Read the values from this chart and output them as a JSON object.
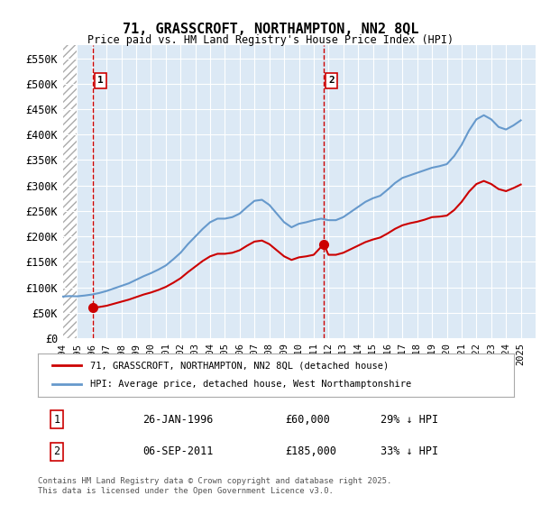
{
  "title": "71, GRASSCROFT, NORTHAMPTON, NN2 8QL",
  "subtitle": "Price paid vs. HM Land Registry's House Price Index (HPI)",
  "bg_color": "#dce9f5",
  "plot_bg_color": "#dce9f5",
  "hatch_color": "#c0c0c0",
  "grid_color": "#ffffff",
  "ylim": [
    0,
    575000
  ],
  "yticks": [
    0,
    50000,
    100000,
    150000,
    200000,
    250000,
    300000,
    350000,
    400000,
    450000,
    500000,
    550000
  ],
  "ytick_labels": [
    "£0",
    "£50K",
    "£100K",
    "£150K",
    "£200K",
    "£250K",
    "£300K",
    "£350K",
    "£400K",
    "£450K",
    "£500K",
    "£550K"
  ],
  "xlim_start": 1994.0,
  "xlim_end": 2026.0,
  "xticks": [
    1994,
    1995,
    1996,
    1997,
    1998,
    1999,
    2000,
    2001,
    2002,
    2003,
    2004,
    2005,
    2006,
    2007,
    2008,
    2009,
    2010,
    2011,
    2012,
    2013,
    2014,
    2015,
    2016,
    2017,
    2018,
    2019,
    2020,
    2021,
    2022,
    2023,
    2024,
    2025
  ],
  "sale1_x": 1996.07,
  "sale1_y": 60000,
  "sale2_x": 2011.68,
  "sale2_y": 185000,
  "legend_line1": "71, GRASSCROFT, NORTHAMPTON, NN2 8QL (detached house)",
  "legend_line2": "HPI: Average price, detached house, West Northamptonshire",
  "table_row1": [
    "1",
    "26-JAN-1996",
    "£60,000",
    "29% ↓ HPI"
  ],
  "table_row2": [
    "2",
    "06-SEP-2011",
    "£185,000",
    "33% ↓ HPI"
  ],
  "footer": "Contains HM Land Registry data © Crown copyright and database right 2025.\nThis data is licensed under the Open Government Licence v3.0.",
  "red_line_color": "#cc0000",
  "blue_line_color": "#6699cc",
  "sale_marker_color": "#cc0000",
  "dashed_line_color": "#cc0000",
  "hpi_data_x": [
    1994.0,
    1994.5,
    1995.0,
    1995.5,
    1996.0,
    1996.5,
    1997.0,
    1997.5,
    1998.0,
    1998.5,
    1999.0,
    1999.5,
    2000.0,
    2000.5,
    2001.0,
    2001.5,
    2002.0,
    2002.5,
    2003.0,
    2003.5,
    2004.0,
    2004.5,
    2005.0,
    2005.5,
    2006.0,
    2006.5,
    2007.0,
    2007.5,
    2008.0,
    2008.5,
    2009.0,
    2009.5,
    2010.0,
    2010.5,
    2011.0,
    2011.5,
    2012.0,
    2012.5,
    2013.0,
    2013.5,
    2014.0,
    2014.5,
    2015.0,
    2015.5,
    2016.0,
    2016.5,
    2017.0,
    2017.5,
    2018.0,
    2018.5,
    2019.0,
    2019.5,
    2020.0,
    2020.5,
    2021.0,
    2021.5,
    2022.0,
    2022.5,
    2023.0,
    2023.5,
    2024.0,
    2024.5,
    2025.0
  ],
  "hpi_data_y": [
    82000,
    83000,
    82500,
    84000,
    86000,
    89000,
    93000,
    98000,
    103000,
    108000,
    115000,
    122000,
    128000,
    135000,
    143000,
    155000,
    168000,
    185000,
    200000,
    215000,
    228000,
    235000,
    235000,
    238000,
    245000,
    258000,
    270000,
    272000,
    262000,
    245000,
    228000,
    218000,
    225000,
    228000,
    232000,
    235000,
    232000,
    232000,
    238000,
    248000,
    258000,
    268000,
    275000,
    280000,
    292000,
    305000,
    315000,
    320000,
    325000,
    330000,
    335000,
    338000,
    342000,
    358000,
    380000,
    408000,
    430000,
    438000,
    430000,
    415000,
    410000,
    418000,
    428000
  ],
  "price_data_x": [
    1996.07,
    1996.5,
    1997.0,
    1997.5,
    1998.0,
    1998.5,
    1999.0,
    1999.5,
    2000.0,
    2000.5,
    2001.0,
    2001.5,
    2002.0,
    2002.5,
    2003.0,
    2003.5,
    2004.0,
    2004.5,
    2005.0,
    2005.5,
    2006.0,
    2006.5,
    2007.0,
    2007.5,
    2008.0,
    2008.5,
    2009.0,
    2009.5,
    2010.0,
    2010.5,
    2011.0,
    2011.68,
    2011.68,
    2012.0,
    2012.5,
    2013.0,
    2013.5,
    2014.0,
    2014.5,
    2015.0,
    2015.5,
    2016.0,
    2016.5,
    2017.0,
    2017.5,
    2018.0,
    2018.5,
    2019.0,
    2019.5,
    2020.0,
    2020.5,
    2021.0,
    2021.5,
    2022.0,
    2022.5,
    2023.0,
    2023.5,
    2024.0,
    2024.5,
    2025.0
  ],
  "price_data_y": [
    60000,
    61500,
    64000,
    68000,
    72000,
    76000,
    81000,
    86000,
    90000,
    95000,
    101000,
    109000,
    118000,
    130000,
    141000,
    152000,
    161000,
    166000,
    166000,
    168000,
    173000,
    182000,
    190000,
    192000,
    185000,
    173000,
    161000,
    154000,
    159000,
    161000,
    164000,
    185000,
    185000,
    164000,
    164000,
    168000,
    175000,
    182000,
    189000,
    194000,
    198000,
    206000,
    215000,
    222000,
    226000,
    229000,
    233000,
    238000,
    239000,
    241000,
    252000,
    268000,
    288000,
    303000,
    309000,
    303000,
    293000,
    289000,
    295000,
    302000
  ]
}
